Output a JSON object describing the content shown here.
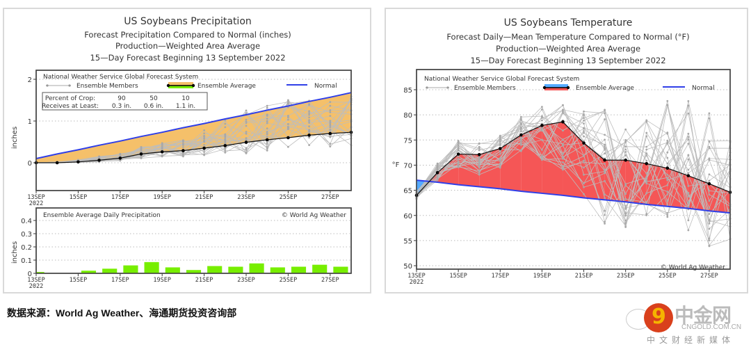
{
  "source_note": "数据来源：World Ag Weather、海通期货投资咨询部",
  "watermark": {
    "brand": "中金网",
    "url": "CNGOLD.COM.CN",
    "tagline": "中文财经新媒体",
    "logo_glyph": "9"
  },
  "chart_data": [
    {
      "id": "precip-cumulative",
      "type": "line",
      "title": "US Soybeans Precipitation",
      "subtitles": [
        "Forecast Precipitation Compared to Normal (inches)",
        "Production—Weighted Area Average",
        "15—Day Forecast Beginning 13 September 2022"
      ],
      "legend_title": "National Weather Service Global Forecast System",
      "legend": {
        "members": "Ensemble Members",
        "average": "Ensemble Average",
        "normal": "Normal"
      },
      "crop_box": {
        "row1_label": "Percent of Crop:",
        "row2_label": "Receives at Least:",
        "percents": [
          "90",
          "50",
          "10"
        ],
        "amounts": [
          "0.3 in.",
          "0.6 in.",
          "1.1 in."
        ]
      },
      "ylabel": "inches",
      "ylim": [
        -0.7,
        2.1
      ],
      "yticks": [
        "0",
        "1",
        "2"
      ],
      "ytick_values": [
        0,
        1,
        2
      ],
      "xlim": [
        0,
        15
      ],
      "xtick_labels": [
        "13SEP",
        "15SEP",
        "17SEP",
        "19SEP",
        "21SEP",
        "23SEP",
        "25SEP",
        "27SEP"
      ],
      "xtick_days": [
        0,
        2,
        4,
        6,
        8,
        10,
        12,
        14
      ],
      "x_year": "2022",
      "x": [
        0,
        1,
        2,
        3,
        4,
        5,
        6,
        7,
        8,
        9,
        10,
        11,
        12,
        13,
        14,
        15
      ],
      "series": [
        {
          "name": "Ensemble Average",
          "values": [
            0.0,
            0.0,
            0.02,
            0.06,
            0.11,
            0.21,
            0.26,
            0.29,
            0.35,
            0.41,
            0.49,
            0.55,
            0.6,
            0.66,
            0.7,
            0.73
          ]
        },
        {
          "name": "Normal",
          "values": [
            0.1,
            0.21,
            0.31,
            0.42,
            0.52,
            0.63,
            0.73,
            0.84,
            0.94,
            1.05,
            1.15,
            1.26,
            1.36,
            1.47,
            1.57,
            1.68
          ]
        }
      ],
      "member_spread": {
        "low": [
          0.0,
          0.0,
          0.0,
          0.02,
          0.05,
          0.1,
          0.13,
          0.15,
          0.17,
          0.2,
          0.22,
          0.27,
          0.3,
          0.33,
          0.35,
          0.38
        ],
        "high": [
          0.0,
          0.02,
          0.08,
          0.15,
          0.22,
          0.4,
          0.48,
          0.55,
          0.9,
          1.05,
          1.3,
          1.4,
          1.55,
          1.55,
          1.5,
          1.6
        ]
      },
      "fill_color": "#f5c06a",
      "normal_color": "#2f3fe8"
    },
    {
      "id": "precip-daily",
      "type": "bar",
      "title": "Ensemble Average Daily Precipitation",
      "credit": "© World Ag Weather",
      "ylabel": "inches",
      "ylim": [
        0,
        0.48
      ],
      "yticks": [
        "0",
        "0.1",
        "0.2",
        "0.3",
        "0.4"
      ],
      "ytick_values": [
        0,
        0.1,
        0.2,
        0.3,
        0.4
      ],
      "xtick_labels": [
        "13SEP",
        "15SEP",
        "17SEP",
        "19SEP",
        "21SEP",
        "23SEP",
        "25SEP",
        "27SEP"
      ],
      "xtick_days": [
        0,
        2,
        4,
        6,
        8,
        10,
        12,
        14
      ],
      "x_year": "2022",
      "x": [
        0,
        1,
        2,
        3,
        4,
        5,
        6,
        7,
        8,
        9,
        10,
        11,
        12,
        13,
        14,
        15
      ],
      "values": [
        0.01,
        0.0,
        0.02,
        0.035,
        0.06,
        0.085,
        0.045,
        0.025,
        0.055,
        0.05,
        0.075,
        0.045,
        0.05,
        0.065,
        0.05,
        0.03
      ],
      "bar_color": "#77ee00"
    },
    {
      "id": "temperature",
      "type": "line",
      "title": "US Soybeans Temperature",
      "subtitles": [
        "Forecast Daily—Mean Temperature Compared to Normal (°F)",
        "Production—Weighted Area Average",
        "15—Day Forecast Beginning 13 September 2022"
      ],
      "legend_title": "National Weather Service Global Forecast System",
      "legend": {
        "members": "Ensemble Members",
        "average": "Ensemble Average",
        "normal": "Normal"
      },
      "credit": "© World Ag Weather",
      "ylabel": "°F",
      "ylim": [
        48.5,
        89
      ],
      "yticks": [
        "50",
        "55",
        "60",
        "65",
        "70",
        "75",
        "80",
        "85"
      ],
      "ytick_values": [
        50,
        55,
        60,
        65,
        70,
        75,
        80,
        85
      ],
      "xtick_labels": [
        "13SEP",
        "15SEP",
        "17SEP",
        "19SEP",
        "21SEP",
        "23SEP",
        "25SEP",
        "27SEP"
      ],
      "xtick_days": [
        0,
        2,
        4,
        6,
        8,
        10,
        12,
        14
      ],
      "x_year": "2022",
      "x": [
        0,
        1,
        2,
        3,
        4,
        5,
        6,
        7,
        8,
        9,
        10,
        11,
        12,
        13,
        14,
        15
      ],
      "series": [
        {
          "name": "Ensemble Average",
          "values": [
            64.0,
            68.5,
            72.2,
            72.1,
            73.3,
            76.0,
            77.9,
            78.6,
            74.4,
            71.0,
            71.0,
            70.3,
            69.4,
            67.9,
            66.3,
            64.6
          ]
        },
        {
          "name": "Normal",
          "values": [
            67.0,
            66.6,
            66.1,
            65.7,
            65.3,
            64.8,
            64.4,
            64.0,
            63.5,
            63.1,
            62.7,
            62.2,
            61.8,
            61.4,
            60.9,
            60.5
          ]
        }
      ],
      "member_spread": {
        "low": [
          63.2,
          67.0,
          69.2,
          67.8,
          68.8,
          72.8,
          71.0,
          69.0,
          63.5,
          57.8,
          56.6,
          59.7,
          59.7,
          55.0,
          51.5,
          53.0
        ],
        "high": [
          64.8,
          70.4,
          75.0,
          74.6,
          75.9,
          80.0,
          82.2,
          82.8,
          81.8,
          81.3,
          79.5,
          79.0,
          83.0,
          83.2,
          81.3,
          75.0
        ]
      },
      "above_color": "#f55656",
      "below_color": "#55aaff",
      "normal_color": "#2f3fe8"
    }
  ]
}
